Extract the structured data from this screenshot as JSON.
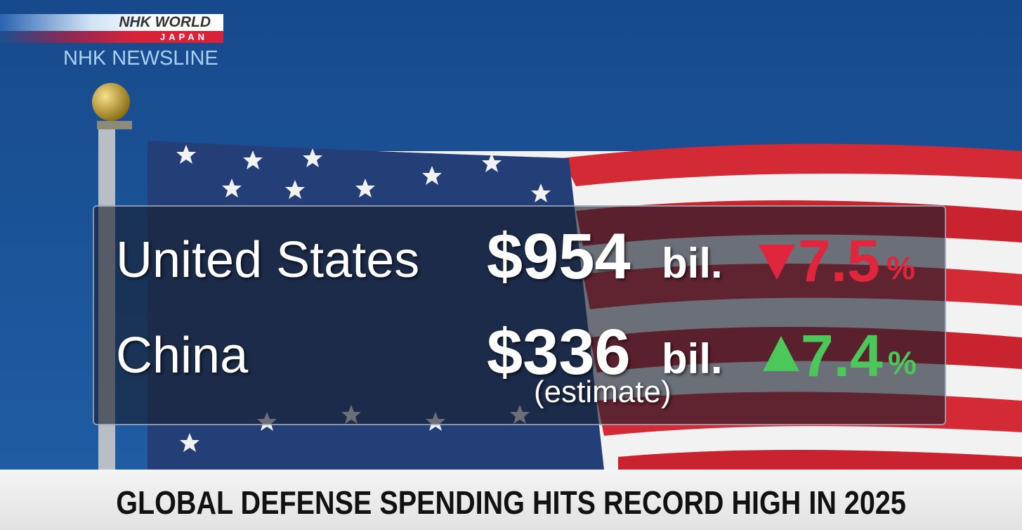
{
  "logo": {
    "brand": "NHK WORLD",
    "region": "JAPAN",
    "program": "NHK NEWSLINE"
  },
  "table": {
    "rows": [
      {
        "country": "United States",
        "amount": "$954",
        "unit": "bil.",
        "change": "7.5",
        "change_unit": "%"
      },
      {
        "country": "China",
        "amount": "$336",
        "unit": "bil.",
        "note": "(estimate)",
        "change": "7.4",
        "change_unit": "%"
      }
    ]
  },
  "headline": "GLOBAL DEFENSE SPENDING HITS RECORD HIGH IN 2025"
}
